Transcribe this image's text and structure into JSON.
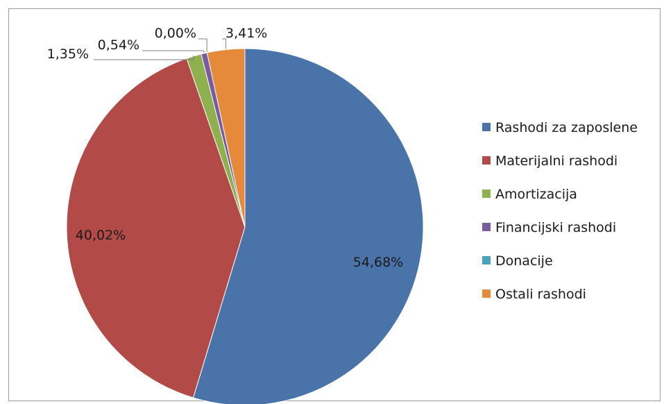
{
  "chart_data": {
    "type": "pie",
    "title": "",
    "slices": [
      {
        "label": "Rashodi za zaposlene",
        "value": 54.68,
        "value_label": "54,68%",
        "color": "#4a73aa"
      },
      {
        "label": "Materijalni rashodi",
        "value": 40.02,
        "value_label": "40,02%",
        "color": "#b24a47"
      },
      {
        "label": "Amortizacija",
        "value": 1.35,
        "value_label": "1,35%",
        "color": "#8fb04e"
      },
      {
        "label": "Financijski rashodi",
        "value": 0.54,
        "value_label": "0,54%",
        "color": "#7b5b9f"
      },
      {
        "label": "Donacije",
        "value": 0.0,
        "value_label": "0,00%",
        "color": "#46a3bb"
      },
      {
        "label": "Ostali rashodi",
        "value": 3.41,
        "value_label": "3,41%",
        "color": "#e58a3a"
      }
    ],
    "legend_position": "right"
  }
}
